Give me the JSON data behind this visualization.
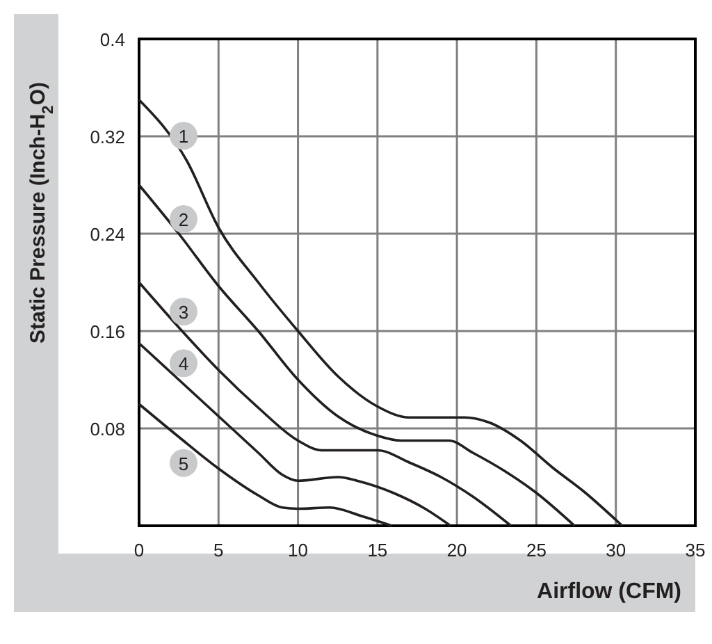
{
  "chart_data": {
    "type": "line",
    "xlabel": "Airflow (CFM)",
    "ylabel": "Static Pressure (Inch-H$_{2}$O)",
    "xlim": [
      0,
      35
    ],
    "ylim": [
      0,
      0.4
    ],
    "xticks": [
      0,
      5,
      10,
      15,
      20,
      25,
      30,
      35
    ],
    "yticks": [
      {
        "value": 0,
        "label": null
      },
      0.08,
      0.16,
      0.24,
      0.32,
      0.4
    ],
    "grid": true,
    "marker": "none",
    "line_style": "solid",
    "series": [
      {
        "name": "1",
        "color": "#231f20",
        "x": [
          0,
          3,
          5,
          7.5,
          10,
          12.5,
          15,
          17,
          20.5,
          22,
          24,
          26,
          28,
          30.4
        ],
        "values": [
          0.35,
          0.3,
          0.245,
          0.2,
          0.16,
          0.123,
          0.098,
          0.089,
          0.089,
          0.085,
          0.07,
          0.048,
          0.028,
          0
        ]
      },
      {
        "name": "2",
        "color": "#231f20",
        "x": [
          0,
          2.5,
          5,
          7.5,
          10,
          12.5,
          15,
          16.5,
          19.5,
          21,
          23,
          25,
          27.4
        ],
        "values": [
          0.28,
          0.24,
          0.197,
          0.16,
          0.12,
          0.09,
          0.074,
          0.07,
          0.07,
          0.06,
          0.045,
          0.027,
          0
        ]
      },
      {
        "name": "3",
        "color": "#231f20",
        "x": [
          0,
          2.5,
          5,
          7.5,
          10,
          11.5,
          13,
          15,
          17,
          19,
          21,
          23.4
        ],
        "values": [
          0.2,
          0.163,
          0.128,
          0.097,
          0.07,
          0.062,
          0.062,
          0.062,
          0.052,
          0.04,
          0.024,
          0
        ]
      },
      {
        "name": "4",
        "color": "#231f20",
        "x": [
          0,
          2.5,
          5,
          7.5,
          9,
          10,
          12.5,
          14,
          16,
          18,
          19.6
        ],
        "values": [
          0.15,
          0.12,
          0.09,
          0.06,
          0.042,
          0.037,
          0.04,
          0.036,
          0.027,
          0.014,
          0
        ]
      },
      {
        "name": "5",
        "color": "#231f20",
        "x": [
          0,
          2.5,
          5,
          7.5,
          9,
          10,
          12,
          14,
          15.9
        ],
        "values": [
          0.1,
          0.073,
          0.047,
          0.025,
          0.015,
          0.014,
          0.015,
          0.008,
          0
        ]
      }
    ]
  }
}
